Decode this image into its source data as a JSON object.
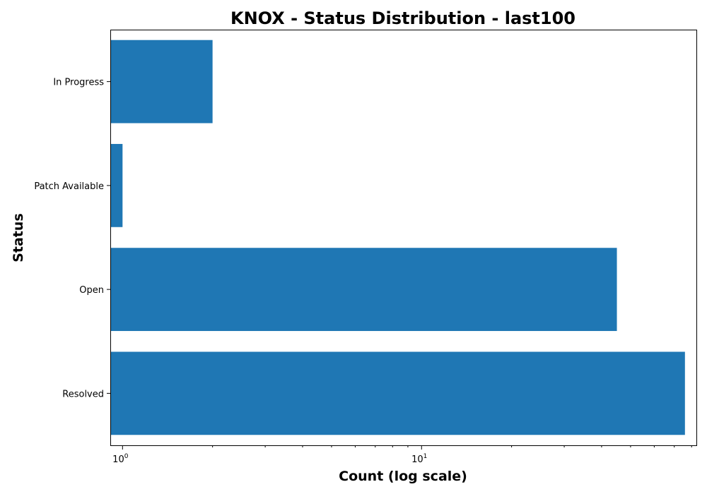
{
  "chart_data": {
    "type": "bar",
    "orientation": "horizontal",
    "title": "KNOX - Status Distribution - last100",
    "xlabel": "Count (log scale)",
    "ylabel": "Status",
    "x_scale": "log",
    "xlim": [
      0.91,
      83
    ],
    "x_major_ticks": [
      {
        "value": 1,
        "base": "10",
        "exponent": "0"
      },
      {
        "value": 10,
        "base": "10",
        "exponent": "1"
      }
    ],
    "categories": [
      "In Progress",
      "Patch Available",
      "Open",
      "Resolved"
    ],
    "values": [
      2,
      1,
      45,
      76
    ],
    "colors": {
      "bar": "#1f77b4"
    },
    "grid": false,
    "legend": "none"
  }
}
